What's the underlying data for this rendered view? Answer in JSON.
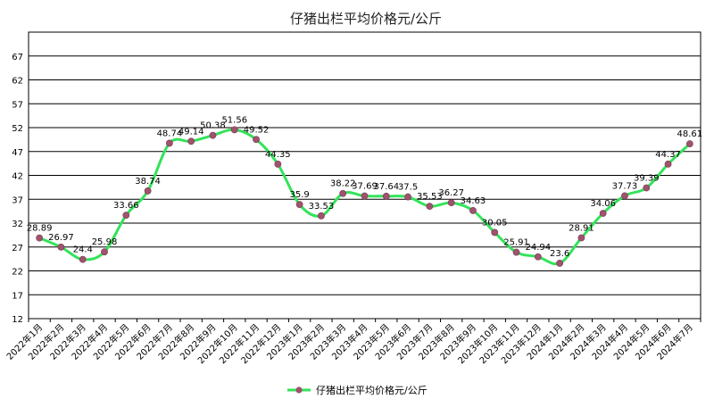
{
  "chart_data": {
    "type": "line",
    "title": "仔猪出栏平均价格元/公斤",
    "categories": [
      "2022年1月",
      "2022年2月",
      "2022年3月",
      "2022年4月",
      "2022年5月",
      "2022年6月",
      "2022年7月",
      "2022年8月",
      "2022年9月",
      "2022年10月",
      "2022年11月",
      "2022年12月",
      "2023年1月",
      "2023年2月",
      "2023年3月",
      "2023年4月",
      "2023年5月",
      "2023年6月",
      "2023年7月",
      "2023年8月",
      "2023年9月",
      "2023年10月",
      "2023年11月",
      "2023年12月",
      "2024年1月",
      "2024年2月",
      "2024年3月",
      "2024年4月",
      "2024年5月",
      "2024年6月",
      "2024年7月"
    ],
    "series": [
      {
        "name": "仔猪出栏平均价格元/公斤",
        "color": "#33e35a",
        "marker_color": "#a0526e",
        "values": [
          28.89,
          26.97,
          24.4,
          25.98,
          33.66,
          38.74,
          48.74,
          49.14,
          50.38,
          51.56,
          49.52,
          44.35,
          35.9,
          33.53,
          38.22,
          37.69,
          37.64,
          37.5,
          35.53,
          36.27,
          34.63,
          30.05,
          25.91,
          24.94,
          23.6,
          28.91,
          34.06,
          37.73,
          39.39,
          44.37,
          48.61
        ]
      }
    ],
    "data_labels": [
      "28.89",
      "26.97",
      "24.4",
      "25.98",
      "33.66",
      "38.74",
      "48.74",
      "49.14",
      "50.38",
      "51.56",
      "49.52",
      "44.35",
      "35.9",
      "33.53",
      "38.22",
      "37.69",
      "37.64",
      "37.5",
      "35.53",
      "36.27",
      "34.63",
      "30.05",
      "25.91",
      "24.94",
      "23.6",
      "28.91",
      "34.06",
      "37.73",
      "39.39",
      "44.37",
      "48.61"
    ],
    "ylim": [
      12,
      72
    ],
    "yticks": [
      12,
      17,
      22,
      27,
      32,
      37,
      42,
      47,
      52,
      57,
      62,
      67
    ],
    "grid": true,
    "legend": "bottom-center",
    "xlabel": "",
    "ylabel": ""
  }
}
